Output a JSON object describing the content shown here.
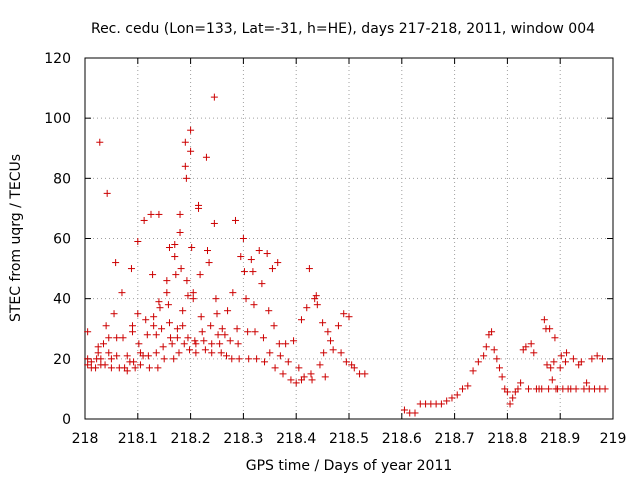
{
  "chart_data": {
    "type": "scatter",
    "title": "Rec. cedu (Lon=133, Lat=-31, h=HE), days 217-218, 2011, window 004",
    "xlabel": "GPS time / Days of year 2011",
    "ylabel": "STEC from uqrg / TECUs",
    "xlim": [
      218,
      219
    ],
    "ylim": [
      0,
      120
    ],
    "x_ticks": [
      "218",
      "218.1",
      "218.2",
      "218.3",
      "218.4",
      "218.5",
      "218.6",
      "218.7",
      "218.8",
      "218.9",
      "219"
    ],
    "y_ticks": [
      "0",
      "20",
      "40",
      "60",
      "80",
      "100",
      "120"
    ],
    "grid": true,
    "marker": "plus",
    "color": "#cc0000",
    "points": [
      [
        218.005,
        29
      ],
      [
        218.005,
        20
      ],
      [
        218.005,
        18
      ],
      [
        218.012,
        17
      ],
      [
        218.012,
        19
      ],
      [
        218.02,
        17
      ],
      [
        218.022,
        20
      ],
      [
        218.025,
        24
      ],
      [
        218.025,
        22
      ],
      [
        218.028,
        92
      ],
      [
        218.03,
        20
      ],
      [
        218.03,
        18
      ],
      [
        218.035,
        25
      ],
      [
        218.038,
        18
      ],
      [
        218.04,
        31
      ],
      [
        218.042,
        75
      ],
      [
        218.045,
        27
      ],
      [
        218.045,
        22
      ],
      [
        218.05,
        17
      ],
      [
        218.05,
        20
      ],
      [
        218.055,
        35
      ],
      [
        218.058,
        52
      ],
      [
        218.06,
        27
      ],
      [
        218.06,
        21
      ],
      [
        218.065,
        17
      ],
      [
        218.07,
        42
      ],
      [
        218.072,
        27
      ],
      [
        218.075,
        17
      ],
      [
        218.08,
        21
      ],
      [
        218.08,
        16
      ],
      [
        218.085,
        19
      ],
      [
        218.088,
        50
      ],
      [
        218.09,
        29
      ],
      [
        218.09,
        31
      ],
      [
        218.092,
        19
      ],
      [
        218.095,
        17
      ],
      [
        218.1,
        59
      ],
      [
        218.1,
        35
      ],
      [
        218.102,
        25
      ],
      [
        218.105,
        22
      ],
      [
        218.105,
        18
      ],
      [
        218.11,
        21
      ],
      [
        218.112,
        66
      ],
      [
        218.115,
        33
      ],
      [
        218.118,
        28
      ],
      [
        218.12,
        21
      ],
      [
        218.122,
        17
      ],
      [
        218.125,
        68
      ],
      [
        218.128,
        48
      ],
      [
        218.13,
        34
      ],
      [
        218.13,
        31
      ],
      [
        218.135,
        28
      ],
      [
        218.135,
        22
      ],
      [
        218.138,
        17
      ],
      [
        218.14,
        68
      ],
      [
        218.14,
        39
      ],
      [
        218.142,
        37
      ],
      [
        218.145,
        30
      ],
      [
        218.148,
        24
      ],
      [
        218.15,
        20
      ],
      [
        218.155,
        46
      ],
      [
        218.155,
        42
      ],
      [
        218.158,
        38
      ],
      [
        218.16,
        57
      ],
      [
        218.16,
        32
      ],
      [
        218.162,
        27
      ],
      [
        218.165,
        25
      ],
      [
        218.168,
        20
      ],
      [
        218.17,
        58
      ],
      [
        218.17,
        54
      ],
      [
        218.172,
        48
      ],
      [
        218.175,
        30
      ],
      [
        218.175,
        27
      ],
      [
        218.178,
        22
      ],
      [
        218.18,
        68
      ],
      [
        218.18,
        62
      ],
      [
        218.182,
        50
      ],
      [
        218.185,
        36
      ],
      [
        218.185,
        31
      ],
      [
        218.188,
        25
      ],
      [
        218.19,
        92
      ],
      [
        218.19,
        84
      ],
      [
        218.192,
        80
      ],
      [
        218.193,
        46
      ],
      [
        218.195,
        41
      ],
      [
        218.195,
        27
      ],
      [
        218.198,
        23
      ],
      [
        218.2,
        96
      ],
      [
        218.2,
        89
      ],
      [
        218.202,
        57
      ],
      [
        218.205,
        42
      ],
      [
        218.205,
        40
      ],
      [
        218.208,
        26
      ],
      [
        218.21,
        25
      ],
      [
        218.21,
        22
      ],
      [
        218.215,
        71
      ],
      [
        218.215,
        70
      ],
      [
        218.218,
        48
      ],
      [
        218.22,
        34
      ],
      [
        218.222,
        29
      ],
      [
        218.225,
        26
      ],
      [
        218.228,
        23
      ],
      [
        218.23,
        87
      ],
      [
        218.232,
        56
      ],
      [
        218.235,
        52
      ],
      [
        218.238,
        31
      ],
      [
        218.24,
        25
      ],
      [
        218.24,
        22
      ],
      [
        218.245,
        107
      ],
      [
        218.245,
        65
      ],
      [
        218.248,
        40
      ],
      [
        218.25,
        35
      ],
      [
        218.252,
        28
      ],
      [
        218.255,
        25
      ],
      [
        218.258,
        22
      ],
      [
        218.26,
        30
      ],
      [
        218.265,
        28
      ],
      [
        218.268,
        21
      ],
      [
        218.27,
        36
      ],
      [
        218.275,
        26
      ],
      [
        218.278,
        20
      ],
      [
        218.28,
        42
      ],
      [
        218.285,
        66
      ],
      [
        218.288,
        30
      ],
      [
        218.29,
        25
      ],
      [
        218.292,
        20
      ],
      [
        218.295,
        54
      ],
      [
        218.3,
        60
      ],
      [
        218.302,
        49
      ],
      [
        218.305,
        40
      ],
      [
        218.308,
        29
      ],
      [
        218.31,
        20
      ],
      [
        218.315,
        53
      ],
      [
        218.318,
        49
      ],
      [
        218.32,
        38
      ],
      [
        218.322,
        29
      ],
      [
        218.325,
        20
      ],
      [
        218.33,
        56
      ],
      [
        218.335,
        45
      ],
      [
        218.338,
        27
      ],
      [
        218.34,
        19
      ],
      [
        218.345,
        55
      ],
      [
        218.348,
        36
      ],
      [
        218.35,
        22
      ],
      [
        218.355,
        50
      ],
      [
        218.358,
        31
      ],
      [
        218.36,
        17
      ],
      [
        218.365,
        52
      ],
      [
        218.368,
        25
      ],
      [
        218.37,
        21
      ],
      [
        218.375,
        15
      ],
      [
        218.38,
        25
      ],
      [
        218.385,
        19
      ],
      [
        218.39,
        13
      ],
      [
        218.395,
        26
      ],
      [
        218.4,
        12
      ],
      [
        218.405,
        17
      ],
      [
        218.41,
        33
      ],
      [
        218.41,
        13
      ],
      [
        218.415,
        14
      ],
      [
        218.42,
        37
      ],
      [
        218.425,
        50
      ],
      [
        218.428,
        15
      ],
      [
        218.43,
        13
      ],
      [
        218.435,
        40
      ],
      [
        218.438,
        41
      ],
      [
        218.44,
        38
      ],
      [
        218.445,
        18
      ],
      [
        218.45,
        32
      ],
      [
        218.452,
        22
      ],
      [
        218.455,
        14
      ],
      [
        218.46,
        29
      ],
      [
        218.465,
        26
      ],
      [
        218.47,
        23
      ],
      [
        218.48,
        31
      ],
      [
        218.485,
        22
      ],
      [
        218.49,
        35
      ],
      [
        218.495,
        19
      ],
      [
        218.5,
        34
      ],
      [
        218.505,
        18
      ],
      [
        218.51,
        17
      ],
      [
        218.52,
        15
      ],
      [
        218.53,
        15
      ],
      [
        218.605,
        3
      ],
      [
        218.615,
        2
      ],
      [
        218.625,
        2
      ],
      [
        218.635,
        5
      ],
      [
        218.645,
        5
      ],
      [
        218.655,
        5
      ],
      [
        218.665,
        5
      ],
      [
        218.675,
        5
      ],
      [
        218.685,
        6
      ],
      [
        218.695,
        7
      ],
      [
        218.705,
        8
      ],
      [
        218.715,
        10
      ],
      [
        218.725,
        11
      ],
      [
        218.735,
        16
      ],
      [
        218.745,
        19
      ],
      [
        218.755,
        21
      ],
      [
        218.76,
        24
      ],
      [
        218.765,
        28
      ],
      [
        218.77,
        29
      ],
      [
        218.775,
        23
      ],
      [
        218.78,
        20
      ],
      [
        218.785,
        17
      ],
      [
        218.79,
        14
      ],
      [
        218.795,
        10
      ],
      [
        218.8,
        9
      ],
      [
        218.805,
        5
      ],
      [
        218.81,
        7
      ],
      [
        218.815,
        9
      ],
      [
        218.82,
        10
      ],
      [
        218.825,
        12
      ],
      [
        218.83,
        23
      ],
      [
        218.835,
        24
      ],
      [
        218.84,
        10
      ],
      [
        218.845,
        25
      ],
      [
        218.85,
        22
      ],
      [
        218.855,
        10
      ],
      [
        218.86,
        10
      ],
      [
        218.865,
        10
      ],
      [
        218.87,
        33
      ],
      [
        218.873,
        30
      ],
      [
        218.875,
        18
      ],
      [
        218.878,
        10
      ],
      [
        218.88,
        30
      ],
      [
        218.882,
        17
      ],
      [
        218.885,
        13
      ],
      [
        218.888,
        19
      ],
      [
        218.89,
        27
      ],
      [
        218.892,
        10
      ],
      [
        218.895,
        10
      ],
      [
        218.9,
        17
      ],
      [
        218.902,
        21
      ],
      [
        218.905,
        10
      ],
      [
        218.91,
        19
      ],
      [
        218.912,
        22
      ],
      [
        218.915,
        10
      ],
      [
        218.92,
        10
      ],
      [
        218.925,
        20
      ],
      [
        218.93,
        10
      ],
      [
        218.935,
        18
      ],
      [
        218.94,
        19
      ],
      [
        218.945,
        10
      ],
      [
        218.95,
        12
      ],
      [
        218.955,
        10
      ],
      [
        218.96,
        20
      ],
      [
        218.965,
        10
      ],
      [
        218.97,
        21
      ],
      [
        218.975,
        10
      ],
      [
        218.98,
        20
      ],
      [
        218.985,
        10
      ]
    ]
  }
}
